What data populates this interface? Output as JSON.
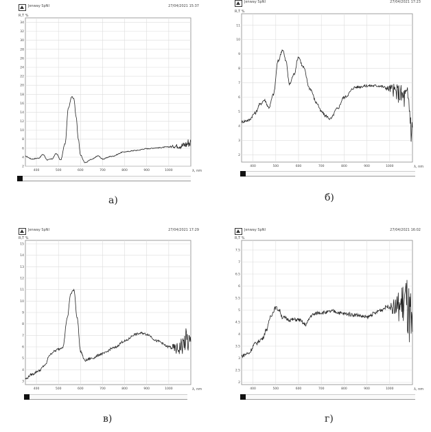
{
  "panels": [
    {
      "app_name": "Jenway SpNI",
      "timestamp": "27/04/2021 15:37",
      "y_label": "R,T %",
      "x_label": "λ, nm",
      "caption": "а)",
      "chart_data": {
        "type": "line",
        "xlim": [
          350,
          1100
        ],
        "ylim": [
          2,
          35
        ],
        "xticks": [
          400,
          500,
          600,
          700,
          800,
          900,
          1000
        ],
        "xtick_labels": [
          "400",
          "500",
          "600",
          "700",
          "800",
          "900",
          "1000"
        ],
        "yticks": [
          2,
          4,
          6,
          8,
          10,
          12,
          14,
          16,
          18,
          20,
          22,
          24,
          26,
          28,
          30,
          32,
          34
        ],
        "ytick_labels": [
          "2",
          "4",
          "6",
          "8",
          "10",
          "12",
          "14",
          "16",
          "18",
          "20",
          "22",
          "24",
          "26",
          "28",
          "30",
          "32",
          "34"
        ],
        "series": [
          {
            "x": [
              350,
              380,
              410,
              430,
              450,
              470,
              490,
              510,
              530,
              545,
              560,
              570,
              580,
              590,
              600,
              620,
              650,
              680,
              700,
              740,
              800,
              850,
              900,
              950,
              1000,
              1040,
              1060,
              1080,
              1090,
              1100
            ],
            "y": [
              4.2,
              3.6,
              3.8,
              4.6,
              3.4,
              3.6,
              4.8,
              3.4,
              7,
              15,
              17.5,
              17,
              13,
              8,
              4.5,
              2.8,
              3.5,
              4.3,
              3.6,
              4.2,
              5.2,
              5.5,
              5.9,
              6.1,
              6.3,
              6.5,
              6.6,
              6.9,
              7.3,
              7.2
            ],
            "noise_from": 1000,
            "noise_amp": [
              0.1,
              1.2
            ]
          }
        ]
      }
    },
    {
      "app_name": "Jenway SpNI",
      "timestamp": "27/04/2021 17:23",
      "y_label": "R,T %",
      "x_label": "λ, nm",
      "caption": "б)",
      "chart_data": {
        "type": "line",
        "xlim": [
          350,
          1100
        ],
        "ylim": [
          1.5,
          11.8
        ],
        "xticks": [
          400,
          500,
          600,
          700,
          800,
          900,
          1000
        ],
        "xtick_labels": [
          "400",
          "500",
          "600",
          "700",
          "800",
          "900",
          "1000"
        ],
        "yticks": [
          2,
          3,
          4,
          5,
          6,
          7,
          8,
          9,
          10,
          11
        ],
        "ytick_labels": [
          "2",
          "3",
          "4",
          "5",
          "6",
          "7",
          "8",
          "9",
          "10",
          "11"
        ],
        "series": [
          {
            "x": [
              350,
              380,
              410,
              430,
              450,
              470,
              490,
              510,
              530,
              545,
              560,
              580,
              600,
              620,
              650,
              680,
              700,
              720,
              740,
              770,
              800,
              850,
              900,
              950,
              1000,
              1040,
              1060,
              1080,
              1100
            ],
            "y": [
              4.3,
              4.4,
              4.9,
              5.5,
              5.8,
              5.3,
              6.2,
              8.5,
              9.3,
              8.5,
              6.9,
              7.6,
              8.8,
              8.1,
              6.6,
              5.6,
              5.0,
              4.7,
              4.5,
              5.2,
              6.0,
              6.7,
              6.8,
              6.8,
              6.6,
              6.3,
              6.0,
              5.9,
              3.5
            ],
            "noise_from": 980,
            "noise_amp": [
              0.1,
              1.3
            ]
          }
        ]
      }
    },
    {
      "app_name": "Jenway SpNI",
      "timestamp": "27/04/2021 17:29",
      "y_label": "R,T %",
      "x_label": "λ, nm",
      "caption": "в)",
      "chart_data": {
        "type": "line",
        "xlim": [
          350,
          1100
        ],
        "ylim": [
          2.7,
          15.3
        ],
        "xticks": [
          400,
          500,
          600,
          700,
          800,
          900,
          1000
        ],
        "xtick_labels": [
          "400",
          "500",
          "600",
          "700",
          "800",
          "900",
          "1000"
        ],
        "yticks": [
          3,
          4,
          5,
          6,
          7,
          8,
          9,
          10,
          11,
          12,
          13,
          14,
          15
        ],
        "ytick_labels": [
          "3",
          "4",
          "5",
          "6",
          "7",
          "8",
          "9",
          "10",
          "11",
          "12",
          "13",
          "14",
          "15"
        ],
        "series": [
          {
            "x": [
              350,
              380,
              410,
              440,
              460,
              480,
              500,
              520,
              540,
              555,
              570,
              585,
              600,
              620,
              650,
              700,
              750,
              800,
              850,
              880,
              900,
              950,
              1000,
              1040,
              1060,
              1080,
              1090,
              1100
            ],
            "y": [
              3.2,
              3.6,
              3.9,
              4.4,
              5.3,
              5.6,
              5.8,
              6.0,
              8.5,
              10.6,
              11.0,
              8.5,
              5.6,
              4.8,
              5.0,
              5.4,
              5.9,
              6.5,
              7.1,
              7.2,
              7.1,
              6.5,
              6.0,
              5.8,
              6.1,
              6.6,
              6.4,
              6.0
            ],
            "noise_from": 1000,
            "noise_amp": [
              0.1,
              1.3
            ]
          }
        ]
      }
    },
    {
      "app_name": "Jenway SpNI",
      "timestamp": "27/04/2021 16:02",
      "y_label": "R,T %",
      "x_label": "λ, nm",
      "caption": "г)",
      "chart_data": {
        "type": "line",
        "xlim": [
          350,
          1100
        ],
        "ylim": [
          1.9,
          7.9
        ],
        "xticks": [
          400,
          500,
          600,
          700,
          800,
          900,
          1000
        ],
        "xtick_labels": [
          "400",
          "500",
          "600",
          "700",
          "800",
          "900",
          "1000"
        ],
        "yticks": [
          2,
          2.5,
          3,
          3.5,
          4,
          4.5,
          5,
          5.5,
          6,
          6.5,
          7,
          7.5
        ],
        "ytick_labels": [
          "2",
          "2.5",
          "3",
          "3.5",
          "4",
          "4.5",
          "5",
          "5.5",
          "6",
          "6.5",
          "7",
          "7.5"
        ],
        "series": [
          {
            "x": [
              350,
              380,
              410,
              440,
              460,
              480,
              500,
              515,
              530,
              560,
              600,
              630,
              660,
              690,
              720,
              750,
              800,
              850,
              900,
              930,
              960,
              990,
              1020,
              1050,
              1070,
              1090,
              1100
            ],
            "y": [
              3.1,
              3.2,
              3.6,
              3.8,
              4.2,
              4.8,
              5.1,
              5.0,
              4.7,
              4.6,
              4.6,
              4.4,
              4.8,
              4.9,
              4.9,
              4.95,
              4.85,
              4.8,
              4.7,
              4.85,
              5.0,
              5.15,
              5.1,
              5.2,
              5.4,
              4.5,
              3.5
            ],
            "noise_from": 1000,
            "noise_amp": [
              0.08,
              1.6
            ]
          }
        ]
      }
    }
  ]
}
